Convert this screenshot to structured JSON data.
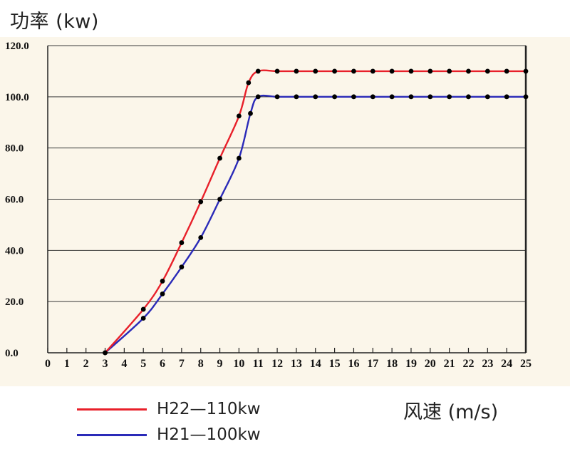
{
  "chart_data": {
    "type": "line",
    "ylabel": "功率 (kw)",
    "xlabel": "风速 (m/s)",
    "ylim": [
      0,
      120
    ],
    "xlim": [
      0,
      25
    ],
    "grid": "horizontal",
    "legend_placement": "bottom-left",
    "x_ticks": [
      "0",
      "1",
      "2",
      "3",
      "4",
      "5",
      "6",
      "7",
      "8",
      "9",
      "10",
      "11",
      "12",
      "13",
      "14",
      "15",
      "16",
      "17",
      "18",
      "19",
      "20",
      "21",
      "22",
      "23",
      "24",
      "25"
    ],
    "y_ticks": [
      "0.0",
      "20.0",
      "40.0",
      "60.0",
      "80.0",
      "100.0",
      "120.0"
    ],
    "series": [
      {
        "name": "H22—110kw",
        "color": "#e8202a",
        "x": [
          3,
          5,
          6,
          7,
          8,
          9,
          10,
          10.5,
          11,
          12,
          13,
          14,
          15,
          16,
          17,
          18,
          19,
          20,
          21,
          22,
          23,
          24,
          25
        ],
        "y": [
          0,
          17,
          28,
          43,
          59,
          76,
          92.5,
          105.5,
          110,
          110,
          110,
          110,
          110,
          110,
          110,
          110,
          110,
          110,
          110,
          110,
          110,
          110,
          110
        ]
      },
      {
        "name": "H21—100kw",
        "color": "#2a2ab8",
        "x": [
          3,
          5,
          6,
          7,
          8,
          9,
          10,
          10.6,
          11,
          12,
          13,
          14,
          15,
          16,
          17,
          18,
          19,
          20,
          21,
          22,
          23,
          24,
          25
        ],
        "y": [
          0,
          13.5,
          23,
          33.5,
          45,
          60,
          76,
          93.5,
          100,
          100,
          100,
          100,
          100,
          100,
          100,
          100,
          100,
          100,
          100,
          100,
          100,
          100,
          100
        ]
      }
    ]
  }
}
